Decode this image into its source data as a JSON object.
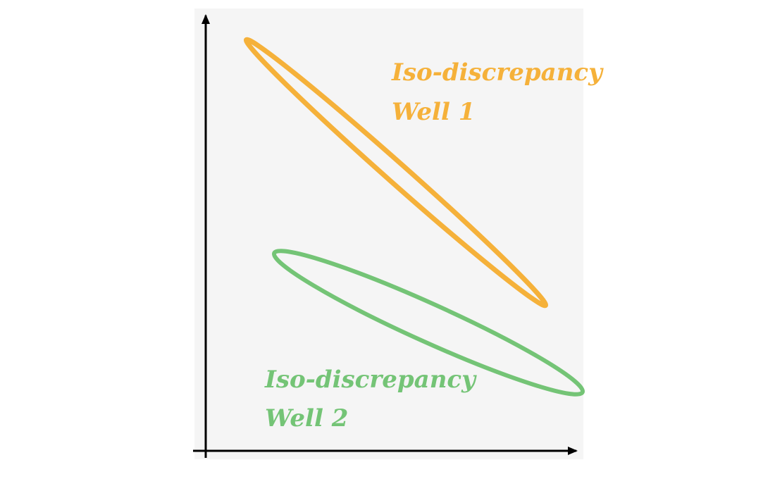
{
  "colors": {
    "panel_background": "#f5f5f5",
    "axis": "#000000",
    "well_1": "#f5b13a",
    "well_2": "#74c476"
  },
  "wells": [
    {
      "name_line1": "Iso-discrepancy",
      "name_line2": "Well 1",
      "color_key": "well_1",
      "shape": "elongated ellipse"
    },
    {
      "name_line1": "Iso-discrepancy",
      "name_line2": "Well 2",
      "color_key": "well_2",
      "shape": "elongated ellipse"
    }
  ]
}
